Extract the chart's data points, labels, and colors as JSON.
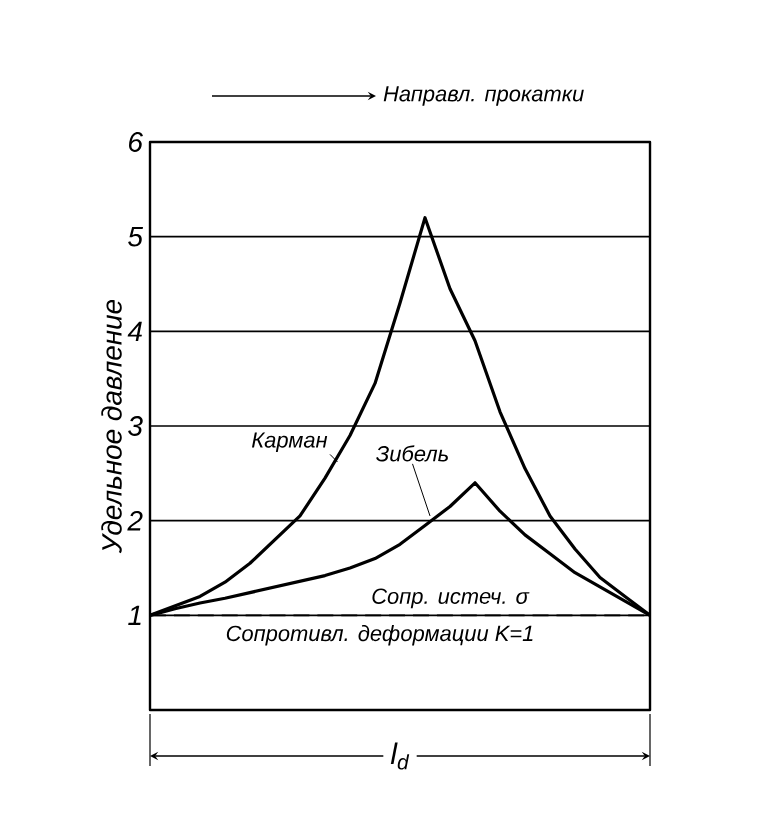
{
  "chart_data": {
    "type": "line",
    "ylabel": "Удельное давление",
    "xlabel": "l$_{d}$",
    "annotations": [
      "Направл. прокатки",
      "Сопротивл. деформации K=1"
    ],
    "categories": [
      null,
      null,
      null,
      null,
      null,
      null,
      null,
      null,
      null,
      null,
      null,
      null,
      null,
      null,
      null,
      null,
      null,
      null,
      null,
      null,
      null
    ],
    "series": [
      {
        "name": "Карман",
        "color": "#000000",
        "values": [
          1.0,
          1.1,
          1.2,
          1.35,
          1.55,
          1.8,
          2.05,
          2.45,
          2.9,
          3.45,
          4.3,
          5.2,
          4.45,
          3.9,
          3.15,
          2.55,
          2.05,
          1.7,
          1.4,
          1.2,
          1.0
        ]
      },
      {
        "name": "Зибель",
        "color": "#000000",
        "values": [
          1.0,
          1.07,
          1.13,
          1.18,
          1.24,
          1.3,
          1.36,
          1.42,
          1.5,
          1.6,
          1.75,
          1.95,
          2.15,
          2.4,
          2.1,
          1.85,
          1.65,
          1.45,
          1.3,
          1.15,
          1.0
        ]
      }
    ],
    "ylim": [
      0,
      6
    ],
    "yticks": [
      1,
      2,
      3,
      4,
      5,
      6
    ],
    "grid": "y",
    "tick_labels": "y",
    "marker": "none",
    "line_style": "solid",
    "ref_lines": [
      {
        "axis": "y",
        "value": 1,
        "label": "Сопр. истеч. σ",
        "line_style": "dashed",
        "color": "#000000"
      }
    ]
  }
}
